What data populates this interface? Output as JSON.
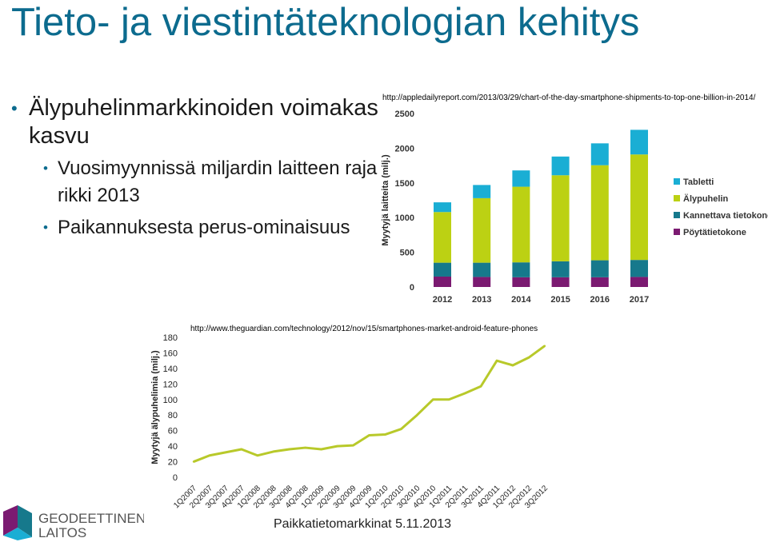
{
  "slide": {
    "title": "Tieto- ja viestintäteknologian kehitys",
    "bullets": [
      {
        "text": "Älypuhelinmarkkinoiden voimakas kasvu",
        "sub": [
          "Vuosimyynnissä miljardin laitteen raja rikki 2013",
          "Paikannuksesta perus-ominaisuus"
        ]
      }
    ],
    "footer": "Paikkatietomarkkinat 5.11.2013",
    "logo_line1": "GEODEETTINEN",
    "logo_line2": "LAITOS"
  },
  "colors": {
    "title": "#0c6b8e",
    "tabletti": "#1aaed4",
    "alypuhelin": "#bcd113",
    "kannettava": "#16798c",
    "poyta": "#7b1a71",
    "line": "#b8c92a"
  },
  "chart_data": [
    {
      "type": "bar",
      "stacked": true,
      "source_url": "http://appledailyreport.com/2013/03/29/chart-of-the-day-smartphone-shipments-to-top-one-billion-in-2014/",
      "categories": [
        "2012",
        "2013",
        "2014",
        "2015",
        "2016",
        "2017"
      ],
      "ylabel": "Myytyjä laitteita (milj.)",
      "ylim": [
        0,
        2500
      ],
      "yticks": [
        0,
        500,
        1000,
        1500,
        2000,
        2500
      ],
      "legend_position": "right",
      "series": [
        {
          "name": "Pöytätietokone",
          "color_key": "poyta",
          "values": [
            150,
            145,
            140,
            140,
            140,
            145
          ]
        },
        {
          "name": "Kannettava tietokone",
          "color_key": "kannettava",
          "values": [
            200,
            205,
            215,
            230,
            245,
            245
          ]
        },
        {
          "name": "Älypuhelin",
          "color_key": "alypuhelin",
          "values": [
            730,
            930,
            1090,
            1240,
            1370,
            1520
          ]
        },
        {
          "name": "Tabletti",
          "color_key": "tabletti",
          "values": [
            140,
            190,
            235,
            270,
            315,
            355
          ]
        }
      ]
    },
    {
      "type": "line",
      "source_url": "http://www.theguardian.com/technology/2012/nov/15/smartphones-market-android-feature-phones",
      "ylabel": "Myytyjä älypuhelimia (milj.)",
      "ylim": [
        0,
        180
      ],
      "yticks": [
        0,
        20,
        40,
        60,
        80,
        100,
        120,
        140,
        160,
        180
      ],
      "x": [
        "1Q2007",
        "2Q2007",
        "3Q2007",
        "4Q2007",
        "1Q2008",
        "2Q2008",
        "3Q2008",
        "4Q2008",
        "1Q2009",
        "2Q2009",
        "3Q2009",
        "4Q2009",
        "1Q2010",
        "2Q2010",
        "3Q2010",
        "4Q2010",
        "1Q2011",
        "2Q2011",
        "3Q2011",
        "4Q2011",
        "1Q2012",
        "2Q2012",
        "3Q2012"
      ],
      "series": [
        {
          "values": [
            20,
            28,
            32,
            36,
            28,
            33,
            36,
            38,
            36,
            40,
            41,
            54,
            55,
            62,
            80,
            100,
            100,
            108,
            117,
            150,
            144,
            154,
            169
          ]
        }
      ]
    }
  ]
}
